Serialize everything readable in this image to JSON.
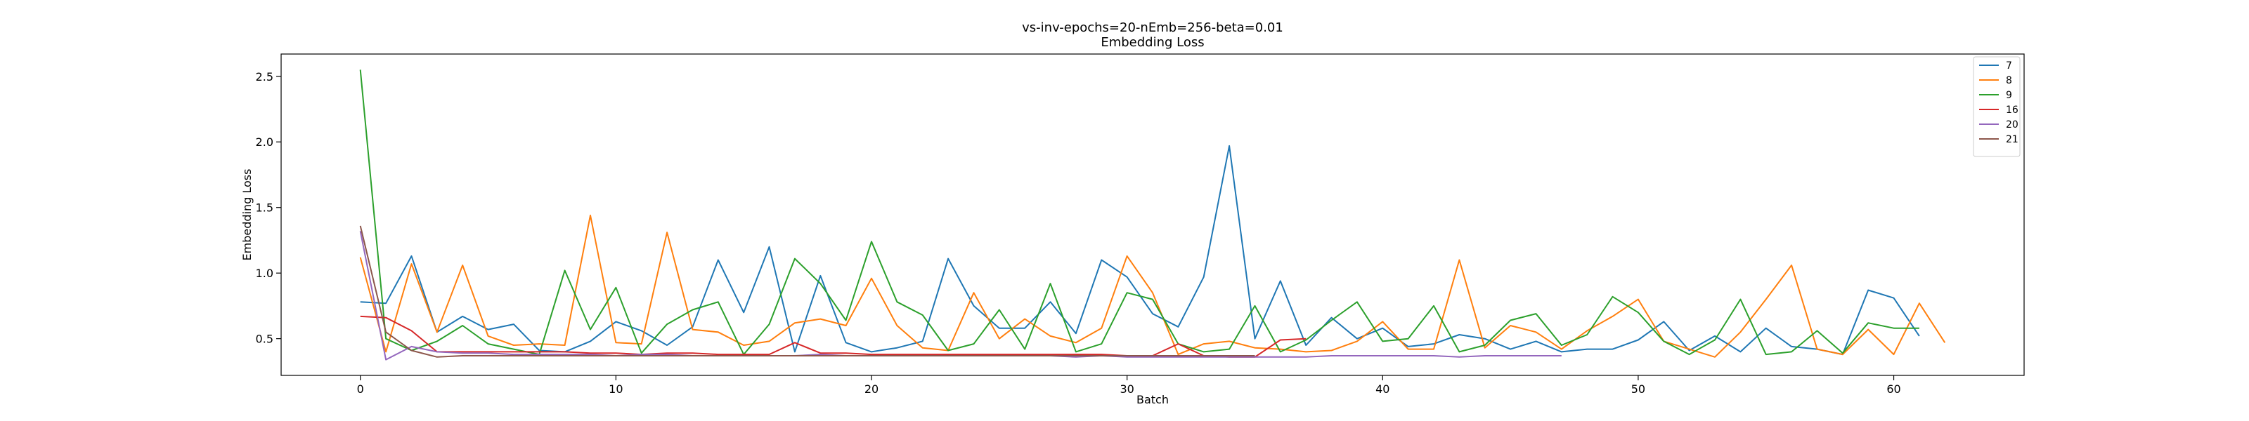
{
  "chart_data": {
    "type": "line",
    "title": "vs-inv-epochs=20-nEmb=256-beta=0.01",
    "subtitle": "Embedding Loss",
    "xlabel": "Batch",
    "ylabel": "Embedding Loss",
    "xlim": [
      -3.1,
      65.1
    ],
    "ylim": [
      0.22,
      2.67
    ],
    "xticks": [
      0,
      10,
      20,
      30,
      40,
      50,
      60
    ],
    "yticks": [
      0.5,
      1.0,
      1.5,
      2.0,
      2.5
    ],
    "xtick_labels": [
      "0",
      "10",
      "20",
      "30",
      "40",
      "50",
      "60"
    ],
    "ytick_labels": [
      "0.5",
      "1.0",
      "1.5",
      "2.0",
      "2.5"
    ],
    "grid": false,
    "legend_position": "top-right",
    "series": [
      {
        "name": "7",
        "color": "#1f77b4",
        "values": [
          0.78,
          0.77,
          1.13,
          0.55,
          0.67,
          0.57,
          0.61,
          0.41,
          0.4,
          0.48,
          0.63,
          0.56,
          0.45,
          0.59,
          1.1,
          0.7,
          1.2,
          0.4,
          0.98,
          0.47,
          0.4,
          0.43,
          0.48,
          1.11,
          0.75,
          0.58,
          0.58,
          0.78,
          0.54,
          1.1,
          0.97,
          0.69,
          0.59,
          0.97,
          1.97,
          0.5,
          0.94,
          0.45,
          0.66,
          0.5,
          0.58,
          0.44,
          0.46,
          0.53,
          0.5,
          0.42,
          0.48,
          0.4,
          0.42,
          0.42,
          0.49,
          0.63,
          0.41,
          0.52,
          0.4,
          0.58,
          0.44,
          0.42,
          0.38,
          0.87,
          0.81,
          0.52
        ]
      },
      {
        "name": "8",
        "color": "#ff7f0e",
        "values": [
          1.12,
          0.4,
          1.07,
          0.55,
          1.06,
          0.52,
          0.45,
          0.46,
          0.45,
          1.44,
          0.47,
          0.46,
          1.31,
          0.57,
          0.55,
          0.45,
          0.48,
          0.62,
          0.65,
          0.6,
          0.96,
          0.6,
          0.43,
          0.41,
          0.85,
          0.5,
          0.65,
          0.52,
          0.47,
          0.58,
          1.13,
          0.85,
          0.38,
          0.46,
          0.48,
          0.43,
          0.42,
          0.4,
          0.41,
          0.48,
          0.63,
          0.42,
          0.42,
          1.1,
          0.43,
          0.6,
          0.55,
          0.42,
          0.56,
          0.67,
          0.8,
          0.48,
          0.42,
          0.36,
          0.55,
          0.8,
          1.06,
          0.42,
          0.38,
          0.57,
          0.38,
          0.77,
          0.47
        ]
      },
      {
        "name": "9",
        "color": "#2ca02c",
        "values": [
          2.55,
          0.5,
          0.41,
          0.48,
          0.6,
          0.46,
          0.42,
          0.38,
          1.02,
          0.57,
          0.89,
          0.39,
          0.61,
          0.72,
          0.78,
          0.38,
          0.61,
          1.11,
          0.92,
          0.64,
          1.24,
          0.78,
          0.68,
          0.41,
          0.46,
          0.72,
          0.42,
          0.92,
          0.4,
          0.46,
          0.85,
          0.8,
          0.46,
          0.4,
          0.42,
          0.75,
          0.4,
          0.49,
          0.64,
          0.78,
          0.48,
          0.5,
          0.75,
          0.4,
          0.45,
          0.64,
          0.69,
          0.45,
          0.53,
          0.82,
          0.7,
          0.48,
          0.38,
          0.49,
          0.8,
          0.38,
          0.4,
          0.56,
          0.39,
          0.62,
          0.58,
          0.58
        ]
      },
      {
        "name": "16",
        "color": "#d62728",
        "values": [
          0.67,
          0.66,
          0.56,
          0.4,
          0.4,
          0.4,
          0.4,
          0.4,
          0.4,
          0.39,
          0.39,
          0.38,
          0.39,
          0.39,
          0.38,
          0.38,
          0.38,
          0.47,
          0.39,
          0.39,
          0.38,
          0.38,
          0.38,
          0.38,
          0.38,
          0.38,
          0.38,
          0.38,
          0.38,
          0.38,
          0.37,
          0.37,
          0.46,
          0.37,
          0.36,
          0.36,
          0.49,
          0.5
        ]
      },
      {
        "name": "20",
        "color": "#9467bd",
        "values": [
          1.32,
          0.34,
          0.44,
          0.4,
          0.39,
          0.39,
          0.38,
          0.38,
          0.38,
          0.38,
          0.37,
          0.38,
          0.38,
          0.37,
          0.37,
          0.37,
          0.37,
          0.37,
          0.38,
          0.37,
          0.37,
          0.37,
          0.37,
          0.37,
          0.37,
          0.37,
          0.37,
          0.37,
          0.36,
          0.37,
          0.36,
          0.36,
          0.36,
          0.36,
          0.36,
          0.36,
          0.36,
          0.36,
          0.37,
          0.37,
          0.37,
          0.37,
          0.37,
          0.36,
          0.37,
          0.37,
          0.37,
          0.37
        ]
      },
      {
        "name": "21",
        "color": "#8c564b",
        "values": [
          1.36,
          0.55,
          0.41,
          0.36,
          0.37,
          0.37,
          0.37,
          0.37,
          0.37,
          0.37,
          0.37,
          0.37,
          0.37,
          0.37,
          0.37,
          0.37,
          0.37,
          0.37,
          0.37,
          0.37,
          0.37,
          0.37,
          0.37,
          0.37,
          0.37,
          0.37,
          0.37,
          0.37,
          0.37,
          0.37,
          0.37,
          0.37,
          0.37,
          0.37,
          0.37,
          0.37
        ]
      }
    ]
  }
}
